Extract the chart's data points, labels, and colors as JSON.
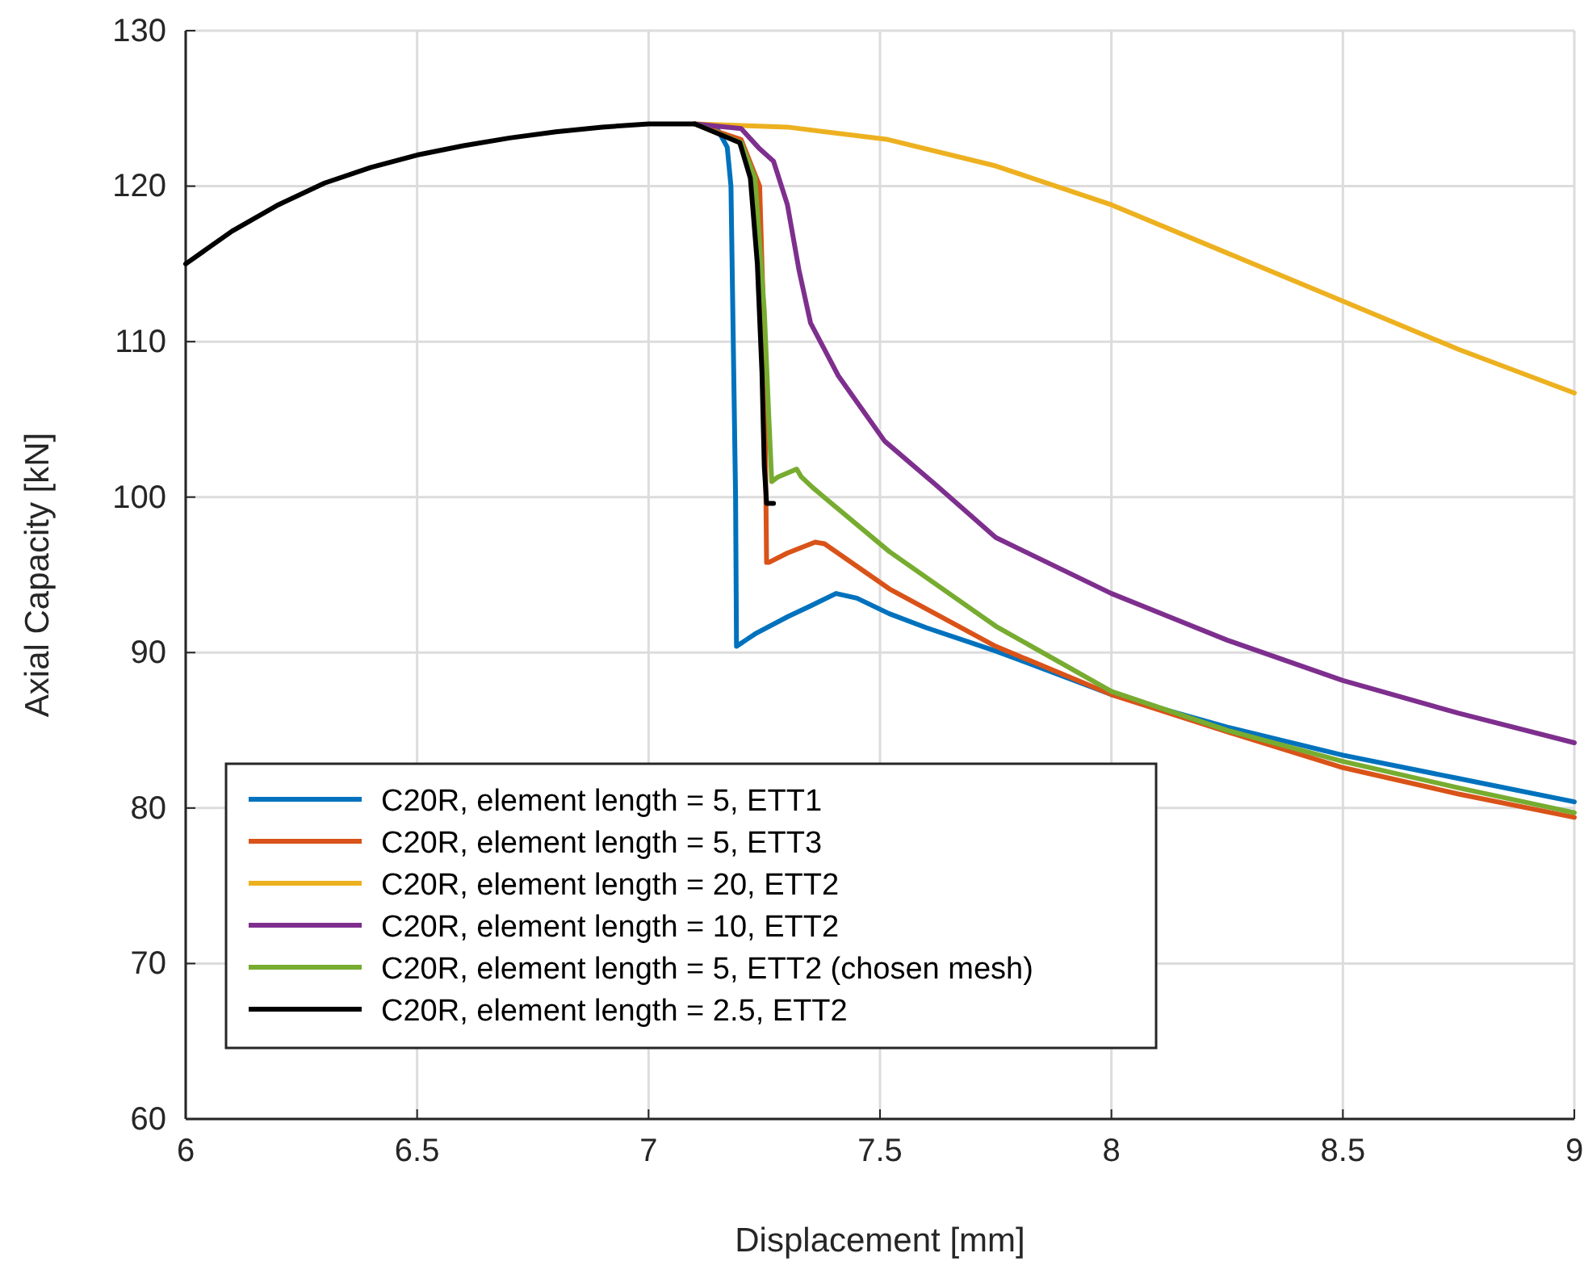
{
  "chart_data": {
    "type": "line",
    "xlabel": "Displacement [mm]",
    "ylabel": "Axial Capacity [kN]",
    "xlim": [
      6,
      9
    ],
    "ylim": [
      60,
      130
    ],
    "xticks": [
      6,
      6.5,
      7,
      7.5,
      8,
      8.5,
      9
    ],
    "yticks": [
      60,
      70,
      80,
      90,
      100,
      110,
      120,
      130
    ],
    "grid": true,
    "legend": "bottom left",
    "marker": "none",
    "line_style": "solid",
    "series": [
      {
        "name": "C20R, element length = 5, ETT1",
        "color": "#0072bd",
        "x": [
          7.1,
          7.15,
          7.17,
          7.178,
          7.183,
          7.188,
          7.19,
          7.2,
          7.21,
          7.23,
          7.3,
          7.35,
          7.405,
          7.45,
          7.52,
          7.6,
          7.75,
          8,
          8.25,
          8.5,
          8.75,
          9
        ],
        "values": [
          124,
          123.6,
          122.5,
          120,
          110,
          100,
          90.4,
          90.6,
          90.8,
          91.2,
          92.3,
          93,
          93.8,
          93.5,
          92.5,
          91.6,
          90.1,
          87.3,
          85.2,
          83.4,
          81.9,
          80.4
        ]
      },
      {
        "name": "C20R, element length = 5, ETT3",
        "color": "#d95319",
        "x": [
          7.1,
          7.2,
          7.24,
          7.25,
          7.255,
          7.26,
          7.3,
          7.36,
          7.38,
          7.52,
          7.75,
          8,
          8.25,
          8.5,
          8.75,
          9
        ],
        "values": [
          124,
          123,
          120,
          110,
          95.8,
          95.8,
          96.4,
          97.1,
          97,
          94.1,
          90.4,
          87.3,
          84.9,
          82.6,
          80.9,
          79.4
        ]
      },
      {
        "name": "C20R, element length = 20, ETT2",
        "color": "#edb120",
        "x": [
          7.1,
          7.3,
          7.517,
          7.75,
          8,
          8.25,
          8.5,
          8.75,
          9
        ],
        "values": [
          124,
          123.8,
          123,
          121.3,
          118.8,
          115.7,
          112.6,
          109.5,
          106.7
        ]
      },
      {
        "name": "C20R, element length = 10, ETT2",
        "color": "#7e2f8e",
        "x": [
          7.1,
          7.2,
          7.24,
          7.27,
          7.3,
          7.325,
          7.35,
          7.41,
          7.51,
          7.62,
          7.75,
          8,
          8.25,
          8.5,
          8.75,
          9
        ],
        "values": [
          124,
          123.7,
          122.4,
          121.6,
          118.8,
          114.6,
          111.2,
          107.8,
          103.6,
          100.8,
          97.4,
          93.8,
          90.8,
          88.2,
          86.1,
          84.2
        ]
      },
      {
        "name": "C20R, element length = 5, ETT2 (chosen mesh)",
        "color": "#77ac30",
        "x": [
          7.1,
          7.2,
          7.23,
          7.25,
          7.26,
          7.266,
          7.28,
          7.32,
          7.33,
          7.355,
          7.52,
          7.75,
          8,
          8.25,
          8.5,
          8.75,
          9
        ],
        "values": [
          124,
          122.8,
          120.5,
          112,
          105,
          101,
          101.3,
          101.8,
          101.3,
          100.6,
          96.5,
          91.7,
          87.5,
          85,
          83,
          81.3,
          79.7
        ]
      },
      {
        "name": "C20R, element length = 2.5, ETT2",
        "color": "#000000",
        "x": [
          6,
          6.1,
          6.2,
          6.3,
          6.4,
          6.5,
          6.6,
          6.7,
          6.8,
          6.9,
          7,
          7.1,
          7.197,
          7.22,
          7.235,
          7.245,
          7.25,
          7.255,
          7.27
        ],
        "values": [
          115,
          117.1,
          118.8,
          120.2,
          121.2,
          122,
          122.6,
          123.1,
          123.5,
          123.8,
          124,
          124,
          122.8,
          120.5,
          115,
          108,
          102,
          99.6,
          99.6
        ]
      }
    ]
  }
}
